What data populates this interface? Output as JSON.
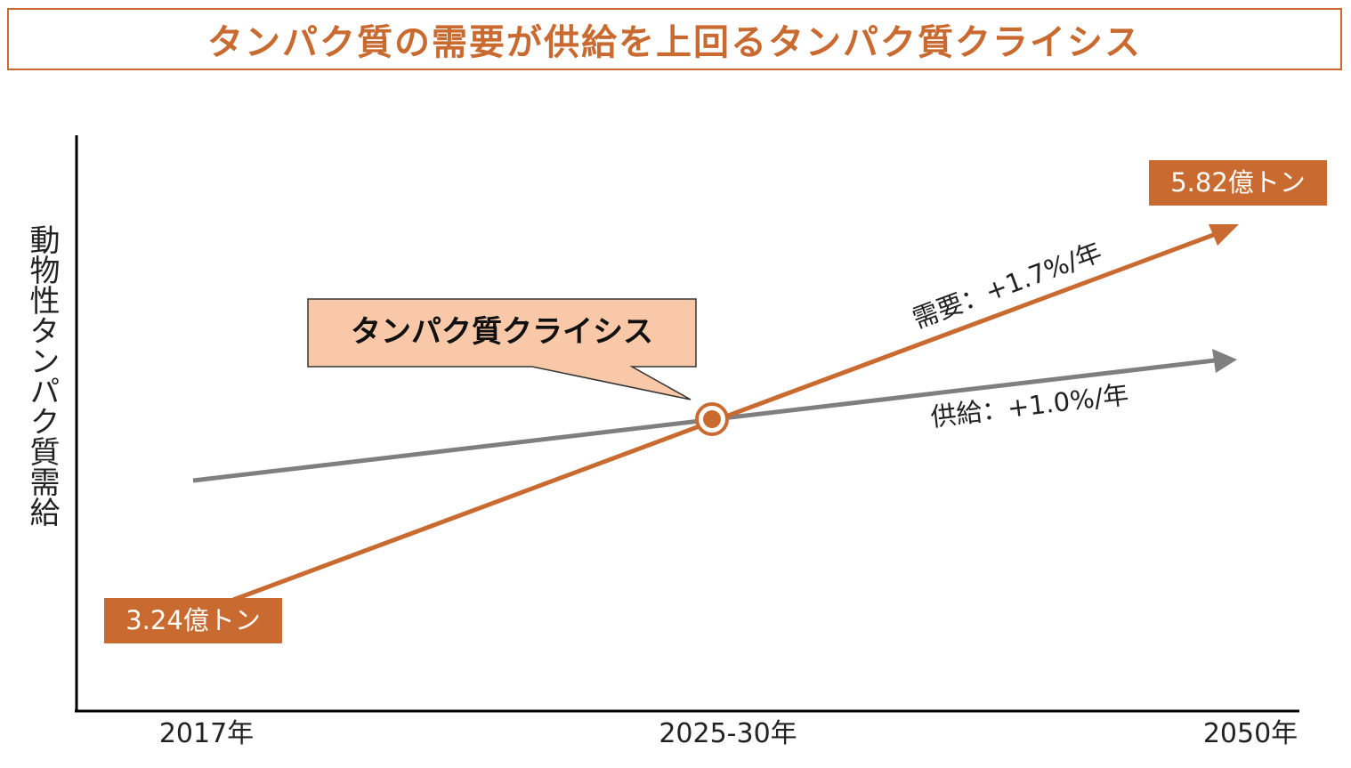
{
  "title": "タンパク質の需要が供給を上回るタンパク質クライシス",
  "chart_data": {
    "type": "line",
    "ylabel": "動物性タンパク質需給",
    "categories": [
      "2017年",
      "2025-30年",
      "2050年"
    ],
    "series": [
      {
        "name": "需要",
        "rate_label": "需要：+1.7%/年",
        "color": "#C96B30",
        "start_label": "3.24億トン",
        "end_label": "5.82億トン"
      },
      {
        "name": "供給",
        "rate_label": "供給：+1.0%/年",
        "color": "#7F7F7F"
      }
    ],
    "annotation": "タンパク質クライシス",
    "grid": false
  }
}
